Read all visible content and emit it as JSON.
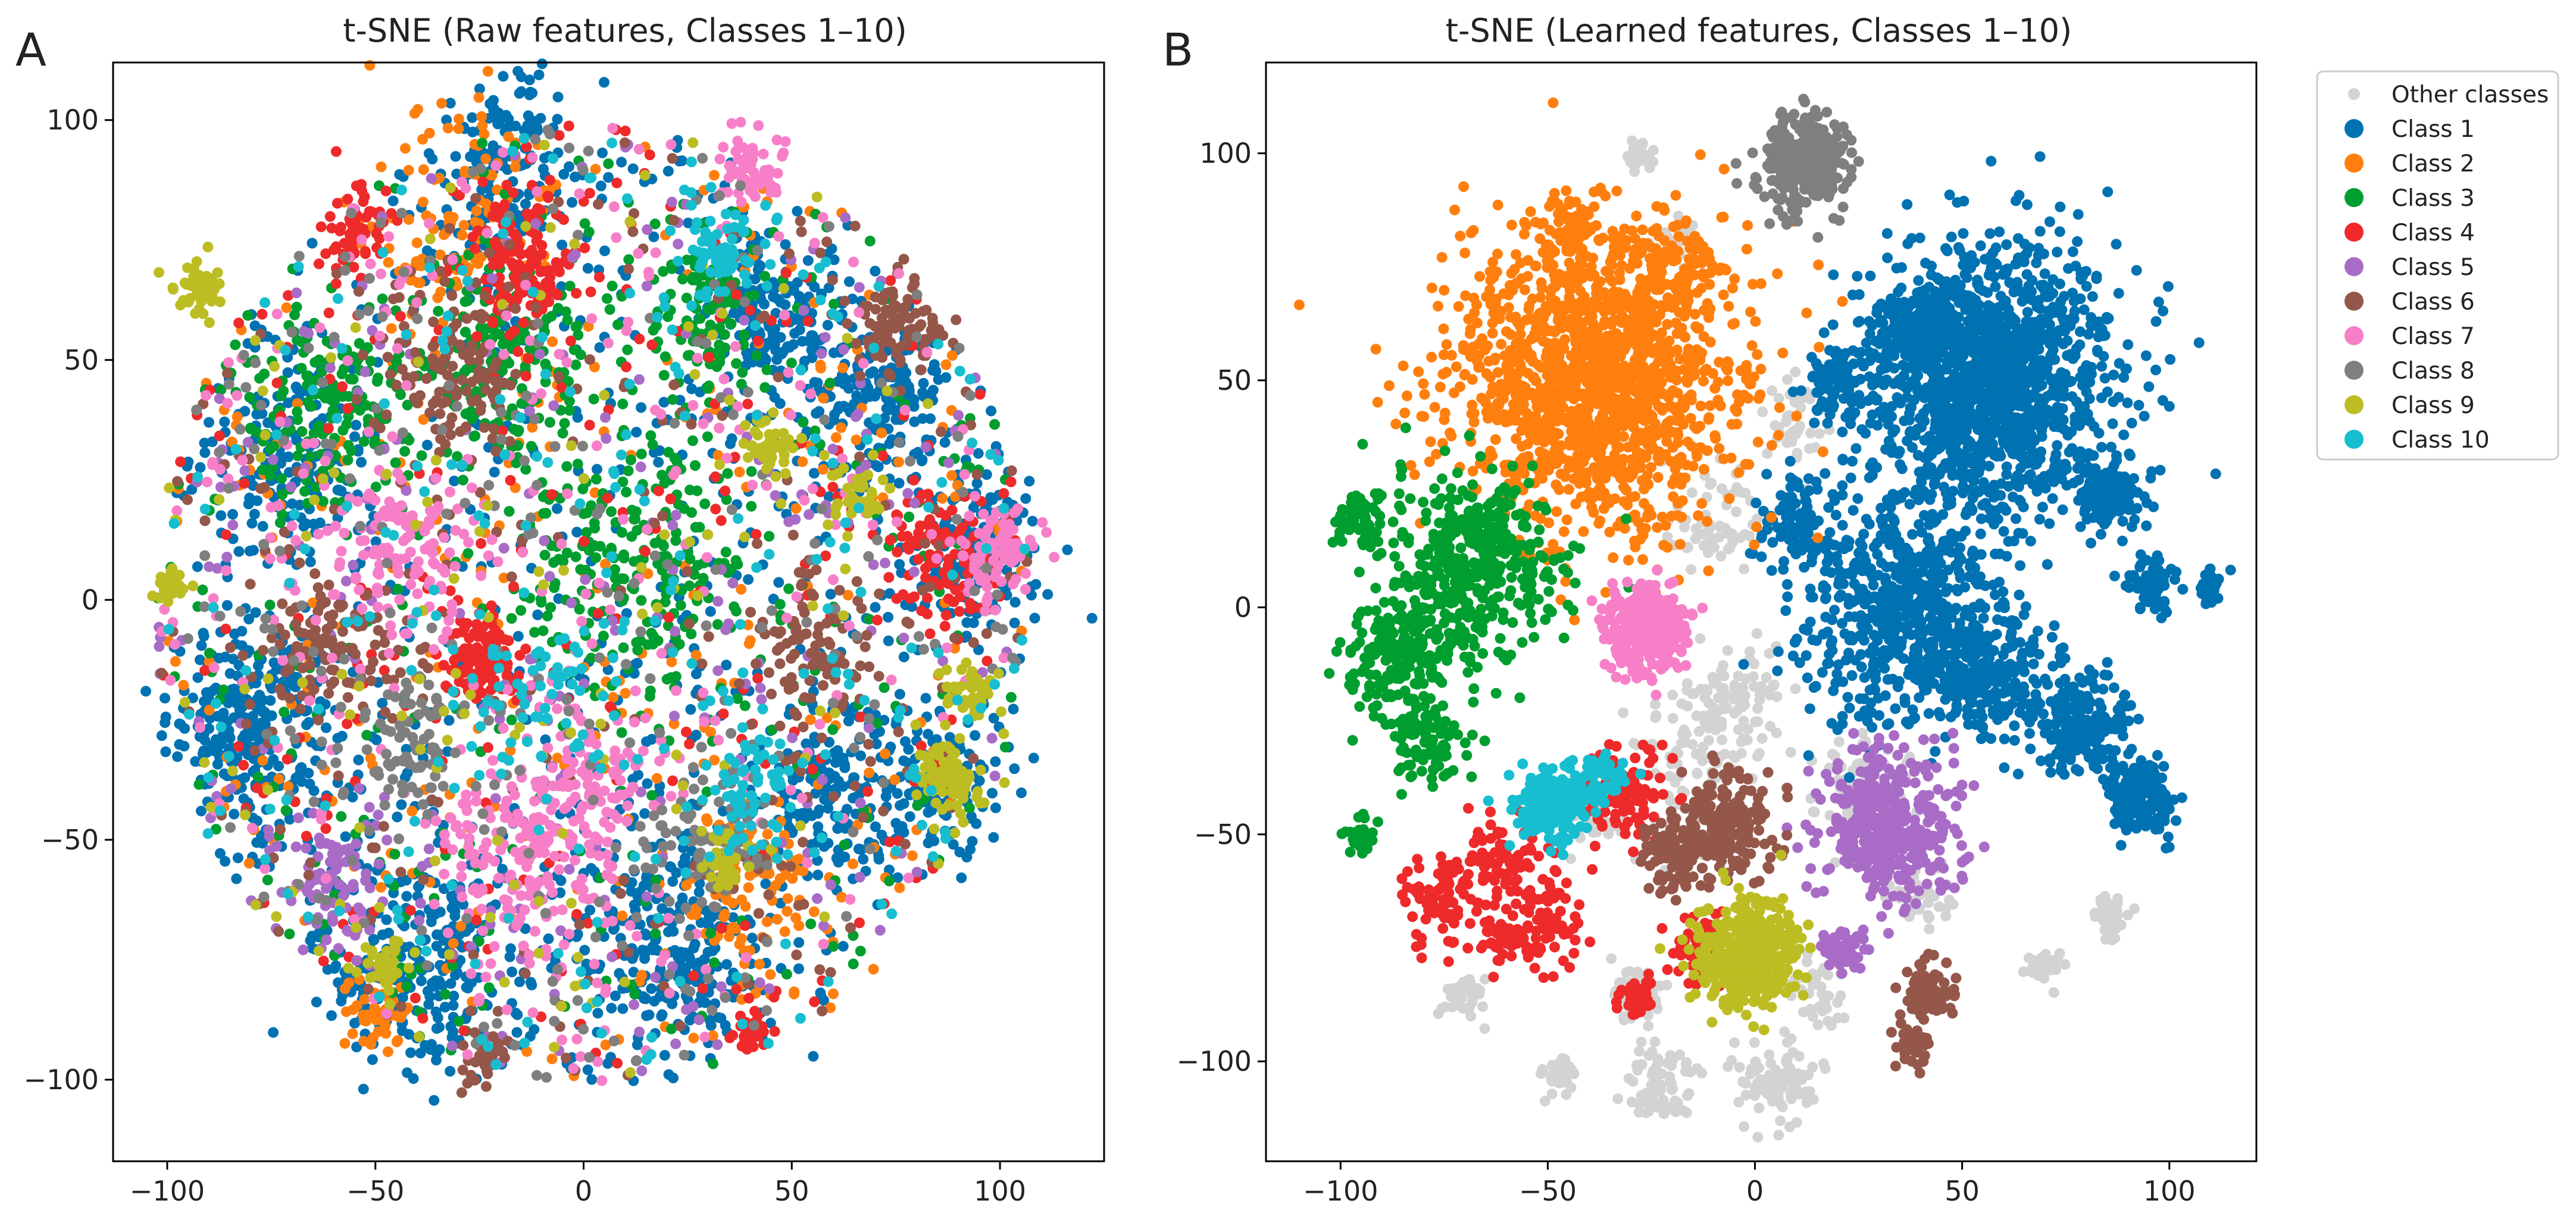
{
  "colors": {
    "Other classes": "#d3d3d3",
    "Class 1": "#0072b2",
    "Class 2": "#ff7f0e",
    "Class 3": "#009e2f",
    "Class 4": "#ee2a2a",
    "Class 5": "#a86cc6",
    "Class 6": "#94574a",
    "Class 7": "#f77fc8",
    "Class 8": "#7f7f7f",
    "Class 9": "#bcbd22",
    "Class 10": "#17becf"
  },
  "legend": {
    "placement": "outside-right-top",
    "entries": [
      "Other classes",
      "Class 1",
      "Class 2",
      "Class 3",
      "Class 4",
      "Class 5",
      "Class 6",
      "Class 7",
      "Class 8",
      "Class 9",
      "Class 10"
    ]
  },
  "chart_data": [
    {
      "panel": "A",
      "type": "scatter",
      "title": "t-SNE (Raw features, Classes 1–10)",
      "xlabel": "",
      "ylabel": "",
      "xlim": [
        -113,
        125
      ],
      "ylim": [
        -117,
        112
      ],
      "xticks": [
        -100,
        -50,
        0,
        50,
        100
      ],
      "yticks": [
        -100,
        -50,
        0,
        50,
        100
      ],
      "xtick_labels": [
        "−100",
        "−50",
        "0",
        "50",
        "100"
      ],
      "ytick_labels": [
        "−100",
        "−50",
        "0",
        "50",
        "100"
      ],
      "grid": false,
      "layout_note": "all classes intermixed within a roughly circular cloud",
      "series": [
        {
          "name": "Class 1",
          "clusters": [
            [
              -80,
              -25,
              10,
              260
            ],
            [
              -40,
              -75,
              12,
              240
            ],
            [
              20,
              -70,
              12,
              220
            ],
            [
              70,
              40,
              9,
              160
            ],
            [
              95,
              10,
              8,
              140
            ],
            [
              45,
              60,
              8,
              140
            ],
            [
              60,
              -40,
              8,
              140
            ],
            [
              -70,
              30,
              9,
              140
            ],
            [
              0,
              0,
              30,
              700
            ],
            [
              -20,
              90,
              10,
              140
            ],
            [
              85,
              -40,
              8,
              100
            ]
          ]
        },
        {
          "name": "Class 2",
          "clusters": [
            [
              -30,
              80,
              12,
              110
            ],
            [
              40,
              -60,
              8,
              90
            ],
            [
              -50,
              -85,
              4,
              40
            ],
            [
              0,
              0,
              30,
              300
            ]
          ]
        },
        {
          "name": "Class 3",
          "clusters": [
            [
              -60,
              40,
              10,
              160
            ],
            [
              -20,
              50,
              10,
              160
            ],
            [
              10,
              10,
              14,
              220
            ],
            [
              30,
              60,
              8,
              110
            ],
            [
              0,
              0,
              30,
              300
            ]
          ]
        },
        {
          "name": "Class 4",
          "clusters": [
            [
              -25,
              -12,
              5,
              120
            ],
            [
              -15,
              70,
              8,
              140
            ],
            [
              -55,
              78,
              4,
              60
            ],
            [
              40,
              -90,
              2,
              40
            ],
            [
              85,
              10,
              7,
              100
            ],
            [
              0,
              0,
              30,
              250
            ]
          ]
        },
        {
          "name": "Class 5",
          "clusters": [
            [
              -60,
              -60,
              7,
              80
            ],
            [
              0,
              0,
              30,
              260
            ]
          ]
        },
        {
          "name": "Class 6",
          "clusters": [
            [
              -30,
              48,
              8,
              100
            ],
            [
              75,
              58,
              5,
              90
            ],
            [
              -60,
              -10,
              8,
              100
            ],
            [
              55,
              -10,
              8,
              90
            ],
            [
              -25,
              -95,
              3,
              30
            ],
            [
              0,
              0,
              30,
              260
            ]
          ]
        },
        {
          "name": "Class 7",
          "clusters": [
            [
              40,
              90,
              4,
              60
            ],
            [
              -15,
              -55,
              10,
              140
            ],
            [
              0,
              -40,
              10,
              120
            ],
            [
              -45,
              10,
              10,
              120
            ],
            [
              100,
              10,
              5,
              80
            ],
            [
              0,
              0,
              30,
              300
            ]
          ]
        },
        {
          "name": "Class 8",
          "clusters": [
            [
              -40,
              -30,
              8,
              80
            ],
            [
              30,
              -50,
              8,
              80
            ],
            [
              0,
              0,
              30,
              260
            ]
          ]
        },
        {
          "name": "Class 9",
          "clusters": [
            [
              -92,
              65,
              3,
              50
            ],
            [
              -100,
              3,
              2,
              30
            ],
            [
              88,
              -38,
              4,
              80
            ],
            [
              93,
              -20,
              3,
              40
            ],
            [
              -48,
              -75,
              3,
              30
            ],
            [
              65,
              22,
              3,
              40
            ],
            [
              45,
              32,
              3,
              40
            ],
            [
              35,
              -55,
              3,
              30
            ],
            [
              0,
              0,
              30,
              150
            ]
          ]
        },
        {
          "name": "Class 10",
          "clusters": [
            [
              33,
              72,
              4,
              60
            ],
            [
              40,
              -40,
              6,
              60
            ],
            [
              -10,
              -20,
              8,
              60
            ],
            [
              0,
              0,
              30,
              260
            ]
          ]
        }
      ]
    },
    {
      "panel": "B",
      "type": "scatter",
      "title": "t-SNE (Learned features, Classes 1–10)",
      "xlabel": "",
      "ylabel": "",
      "xlim": [
        -118,
        121
      ],
      "ylim": [
        -122,
        120
      ],
      "xticks": [
        -100,
        -50,
        0,
        50,
        100
      ],
      "yticks": [
        -100,
        -50,
        0,
        50,
        100
      ],
      "xtick_labels": [
        "−100",
        "−50",
        "0",
        "50",
        "100"
      ],
      "ytick_labels": [
        "−100",
        "−50",
        "0",
        "50",
        "100"
      ],
      "grid": false,
      "series": [
        {
          "name": "Other classes",
          "clusters": [
            [
              -28,
              -86,
              3,
              60
            ],
            [
              -22,
              -105,
              4,
              70
            ],
            [
              5,
              -105,
              5,
              90
            ],
            [
              -70,
              -85,
              3,
              40
            ],
            [
              -47,
              -103,
              2,
              30
            ],
            [
              85,
              -68,
              2,
              40
            ],
            [
              70,
              -80,
              2,
              30
            ],
            [
              25,
              -40,
              6,
              80
            ],
            [
              -5,
              -20,
              6,
              80
            ],
            [
              -10,
              20,
              6,
              60
            ],
            [
              40,
              -65,
              4,
              40
            ],
            [
              -28,
              99,
              2,
              30
            ],
            [
              15,
              -85,
              4,
              40
            ],
            [
              -40,
              -45,
              4,
              40
            ],
            [
              -15,
              -35,
              8,
              80
            ],
            [
              10,
              40,
              5,
              40
            ],
            [
              -20,
              80,
              3,
              30
            ]
          ]
        },
        {
          "name": "Class 1",
          "clusters": [
            [
              57,
              50,
              15,
              1400
            ],
            [
              38,
              62,
              5,
              160
            ],
            [
              20,
              50,
              4,
              80
            ],
            [
              35,
              0,
              12,
              600
            ],
            [
              55,
              -15,
              7,
              220
            ],
            [
              77,
              -25,
              6,
              200
            ],
            [
              93,
              -42,
              4,
              160
            ],
            [
              85,
              25,
              4,
              130
            ],
            [
              96,
              5,
              3,
              60
            ],
            [
              110,
              5,
              2,
              30
            ],
            [
              10,
              20,
              5,
              90
            ]
          ]
        },
        {
          "name": "Class 2",
          "clusters": [
            [
              -38,
              50,
              17,
              1500
            ],
            [
              -45,
              82,
              3,
              60
            ],
            [
              -20,
              75,
              5,
              80
            ]
          ]
        },
        {
          "name": "Class 3",
          "clusters": [
            [
              -68,
              10,
              10,
              420
            ],
            [
              -85,
              -10,
              7,
              200
            ],
            [
              -95,
              20,
              3,
              60
            ],
            [
              -95,
              -50,
              2,
              30
            ],
            [
              -80,
              -30,
              5,
              90
            ]
          ]
        },
        {
          "name": "Class 4",
          "clusters": [
            [
              -30,
              -40,
              5,
              90
            ],
            [
              -60,
              -55,
              5,
              80
            ],
            [
              -75,
              -65,
              5,
              90
            ],
            [
              -50,
              -70,
              5,
              80
            ],
            [
              -28,
              -85,
              2,
              40
            ],
            [
              -13,
              -75,
              4,
              80
            ],
            [
              -62,
              -72,
              3,
              40
            ]
          ]
        },
        {
          "name": "Class 5",
          "clusters": [
            [
              32,
              -48,
              8,
              400
            ],
            [
              22,
              -75,
              3,
              60
            ]
          ]
        },
        {
          "name": "Class 6",
          "clusters": [
            [
              -8,
              -48,
              6,
              220
            ],
            [
              -20,
              -55,
              4,
              80
            ],
            [
              42,
              -85,
              3,
              90
            ],
            [
              38,
              -97,
              2,
              40
            ]
          ]
        },
        {
          "name": "Class 7",
          "clusters": [
            [
              -26,
              -5,
              5,
              300
            ]
          ]
        },
        {
          "name": "Class 8",
          "clusters": [
            [
              12,
              98,
              5,
              320
            ]
          ]
        },
        {
          "name": "Class 9",
          "clusters": [
            [
              -2,
              -77,
              6,
              380
            ]
          ]
        },
        {
          "name": "Class 10",
          "clusters": [
            [
              -50,
              -44,
              4,
              200
            ],
            [
              -38,
              -38,
              3,
              60
            ]
          ]
        }
      ]
    }
  ]
}
